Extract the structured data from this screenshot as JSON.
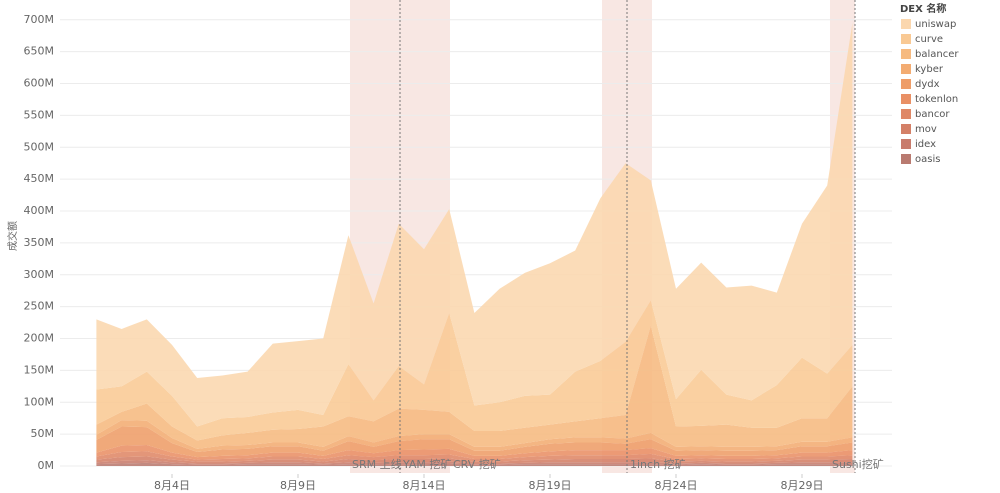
{
  "chart_data": {
    "type": "stacked-area",
    "y_label": "成交额",
    "legend_title": "DEX 名称",
    "legend_position": "right",
    "grid": true,
    "categories": [
      null,
      null,
      null,
      "8月4日",
      null,
      null,
      null,
      null,
      "8月9日",
      null,
      null,
      null,
      null,
      "8月14日",
      null,
      null,
      null,
      null,
      "8月19日",
      null,
      null,
      null,
      null,
      "8月24日",
      null,
      null,
      null,
      null,
      "8月29日",
      null,
      null
    ],
    "ylim": [
      -12.5,
      731
    ],
    "yticks": [
      {
        "value": 0,
        "label": "0M"
      },
      {
        "value": 50,
        "label": "50M"
      },
      {
        "value": 100,
        "label": "100M"
      },
      {
        "value": 150,
        "label": "150M"
      },
      {
        "value": 200,
        "label": "200M"
      },
      {
        "value": 250,
        "label": "250M"
      },
      {
        "value": 300,
        "label": "300M"
      },
      {
        "value": 350,
        "label": "350M"
      },
      {
        "value": 400,
        "label": "400M"
      },
      {
        "value": 450,
        "label": "450M"
      },
      {
        "value": 500,
        "label": "500M"
      },
      {
        "value": 550,
        "label": "550M"
      },
      {
        "value": 600,
        "label": "600M"
      },
      {
        "value": 650,
        "label": "650M"
      },
      {
        "value": 700,
        "label": "700M"
      }
    ],
    "annotations": [
      {
        "text": "SRM 上线"
      },
      {
        "text": "YAM 挖矿"
      },
      {
        "text": "CRV 挖矿"
      },
      {
        "text": "1inch 挖矿"
      },
      {
        "text": "Sushi挖矿"
      }
    ],
    "series": [
      {
        "name": "uniswap",
        "color": "#fbd7ae",
        "values": [
          110,
          90,
          82,
          80,
          76,
          67,
          71,
          108,
          108,
          120,
          202,
          152,
          223,
          212,
          163,
          145,
          178,
          193,
          206,
          190,
          255,
          280,
          188,
          173,
          168,
          168,
          180,
          145,
          210,
          295,
          505
        ]
      },
      {
        "name": "curve",
        "color": "#f9c994",
        "values": [
          55,
          40,
          50,
          48,
          22,
          27,
          25,
          27,
          30,
          18,
          82,
          33,
          67,
          40,
          155,
          40,
          45,
          50,
          47,
          78,
          90,
          115,
          40,
          43,
          88,
          47,
          43,
          67,
          95,
          70,
          65
        ]
      },
      {
        "name": "balancer",
        "color": "#f6ba80",
        "values": [
          16,
          13,
          27,
          18,
          13,
          16,
          19,
          20,
          21,
          32,
          31,
          33,
          43,
          38,
          35,
          25,
          25,
          24,
          23,
          25,
          30,
          37,
          168,
          32,
          32,
          35,
          30,
          29,
          37,
          37,
          80
        ]
      },
      {
        "name": "kyber",
        "color": "#f3ac72",
        "values": [
          8,
          10,
          10,
          8,
          5,
          6,
          6,
          6,
          6,
          6,
          8,
          7,
          8,
          8,
          8,
          6,
          6,
          6,
          7,
          8,
          8,
          8,
          10,
          6,
          6,
          6,
          6,
          6,
          7,
          7,
          8
        ]
      },
      {
        "name": "dydx",
        "color": "#ee9d68",
        "values": [
          20,
          30,
          28,
          15,
          8,
          10,
          10,
          10,
          10,
          8,
          14,
          10,
          14,
          16,
          15,
          8,
          8,
          10,
          12,
          12,
          12,
          10,
          14,
          8,
          8,
          8,
          8,
          8,
          10,
          10,
          12
        ]
      },
      {
        "name": "tokenlon",
        "color": "#e99065",
        "values": [
          6,
          10,
          10,
          6,
          4,
          5,
          5,
          6,
          6,
          5,
          8,
          6,
          8,
          9,
          9,
          5,
          5,
          6,
          7,
          8,
          8,
          8,
          9,
          5,
          5,
          5,
          5,
          5,
          6,
          6,
          8
        ]
      },
      {
        "name": "bancor",
        "color": "#df8866",
        "values": [
          5,
          8,
          8,
          5,
          3,
          4,
          4,
          5,
          5,
          4,
          6,
          5,
          6,
          6,
          6,
          4,
          4,
          5,
          6,
          6,
          6,
          6,
          7,
          4,
          4,
          4,
          4,
          4,
          5,
          5,
          6
        ]
      },
      {
        "name": "mov",
        "color": "#d48067",
        "values": [
          4,
          6,
          6,
          4,
          3,
          3,
          3,
          4,
          4,
          3,
          5,
          4,
          5,
          5,
          5,
          3,
          3,
          4,
          4,
          5,
          5,
          5,
          6,
          3,
          3,
          3,
          3,
          3,
          4,
          4,
          5
        ]
      },
      {
        "name": "idex",
        "color": "#c87c6c",
        "values": [
          3,
          4,
          4,
          3,
          2,
          2,
          2,
          3,
          3,
          2,
          3,
          3,
          3,
          3,
          3,
          2,
          2,
          2,
          3,
          3,
          3,
          3,
          3,
          2,
          2,
          2,
          2,
          2,
          3,
          3,
          3
        ]
      },
      {
        "name": "oasis",
        "color": "#b97a70",
        "values": [
          3,
          4,
          5,
          3,
          2,
          2,
          3,
          3,
          3,
          2,
          3,
          2,
          3,
          3,
          4,
          2,
          2,
          3,
          3,
          3,
          3,
          3,
          3,
          2,
          3,
          2,
          2,
          3,
          3,
          3,
          3
        ]
      }
    ]
  }
}
